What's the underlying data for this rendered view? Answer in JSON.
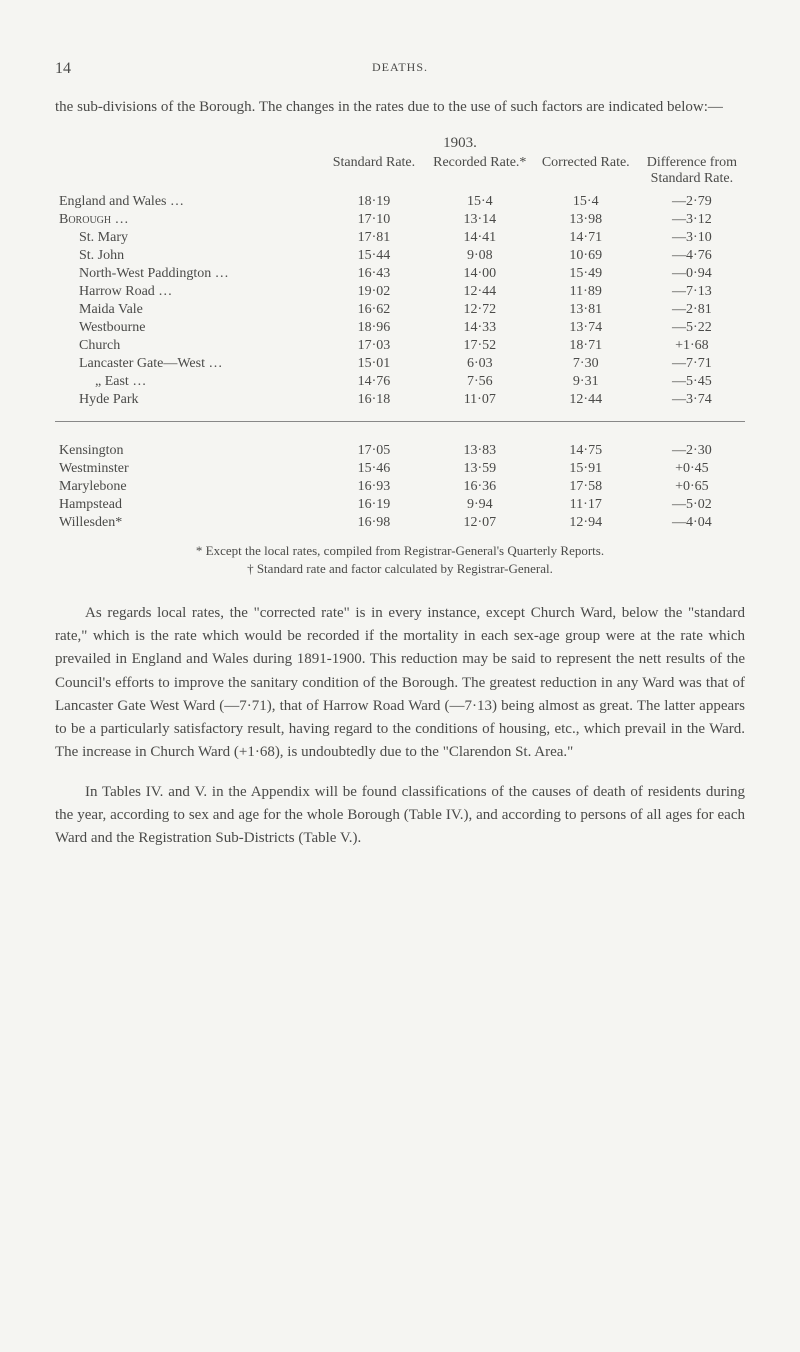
{
  "page_number": "14",
  "section_title": "DEATHS.",
  "intro": "the sub-divisions of the Borough. The changes in the rates due to the use of such factors are indicated below:—",
  "table": {
    "year": "1903.",
    "headers": {
      "col1": "Standard Rate.",
      "col2": "Recorded Rate.*",
      "col3": "Corrected Rate.",
      "col4": "Difference from Standard Rate."
    },
    "rows_top": [
      {
        "label": "England and Wales …",
        "indent": 0,
        "c1": "18·19",
        "c2": "15·4",
        "c3": "15·4",
        "c4": "—2·79"
      },
      {
        "label": "Borough …",
        "indent": 0,
        "smallcaps": true,
        "c1": "17·10",
        "c2": "13·14",
        "c3": "13·98",
        "c4": "—3·12"
      },
      {
        "label": "St. Mary",
        "indent": 1,
        "c1": "17·81",
        "c2": "14·41",
        "c3": "14·71",
        "c4": "—3·10"
      },
      {
        "label": "St. John",
        "indent": 1,
        "c1": "15·44",
        "c2": "9·08",
        "c3": "10·69",
        "c4": "—4·76"
      },
      {
        "label": "North-West Paddington …",
        "indent": 1,
        "c1": "16·43",
        "c2": "14·00",
        "c3": "15·49",
        "c4": "—0·94"
      },
      {
        "label": "Harrow Road …",
        "indent": 1,
        "c1": "19·02",
        "c2": "12·44",
        "c3": "11·89",
        "c4": "—7·13"
      },
      {
        "label": "Maida Vale",
        "indent": 1,
        "c1": "16·62",
        "c2": "12·72",
        "c3": "13·81",
        "c4": "—2·81"
      },
      {
        "label": "Westbourne",
        "indent": 1,
        "c1": "18·96",
        "c2": "14·33",
        "c3": "13·74",
        "c4": "—5·22"
      },
      {
        "label": "Church",
        "indent": 1,
        "c1": "17·03",
        "c2": "17·52",
        "c3": "18·71",
        "c4": "+1·68"
      },
      {
        "label": "Lancaster Gate—West …",
        "indent": 1,
        "c1": "15·01",
        "c2": "6·03",
        "c3": "7·30",
        "c4": "—7·71"
      },
      {
        "label": "„          East …",
        "indent": 2,
        "c1": "14·76",
        "c2": "7·56",
        "c3": "9·31",
        "c4": "—5·45"
      },
      {
        "label": "Hyde Park",
        "indent": 1,
        "c1": "16·18",
        "c2": "11·07",
        "c3": "12·44",
        "c4": "—3·74"
      }
    ],
    "rows_bottom": [
      {
        "label": "Kensington",
        "c1": "17·05",
        "c2": "13·83",
        "c3": "14·75",
        "c4": "—2·30"
      },
      {
        "label": "Westminster",
        "c1": "15·46",
        "c2": "13·59",
        "c3": "15·91",
        "c4": "+0·45"
      },
      {
        "label": "Marylebone",
        "c1": "16·93",
        "c2": "16·36",
        "c3": "17·58",
        "c4": "+0·65"
      },
      {
        "label": "Hampstead",
        "c1": "16·19",
        "c2": "9·94",
        "c3": "11·17",
        "c4": "—5·02"
      },
      {
        "label": "Willesden*",
        "c1": "16·98",
        "c2": "12·07",
        "c3": "12·94",
        "c4": "—4·04"
      }
    ]
  },
  "footnote1": "* Except the local rates, compiled from Registrar-General's Quarterly Reports.",
  "footnote2": "† Standard rate and factor calculated by Registrar-General.",
  "para1": "As regards local rates, the \"corrected rate\" is in every instance, except Church Ward, below the \"standard rate,\" which is the rate which would be recorded if the mortality in each sex-age group were at the rate which prevailed in England and Wales during 1891-1900. This reduction may be said to represent the nett results of the Council's efforts to improve the sanitary condition of the Borough. The greatest reduction in any Ward was that of Lancaster Gate West Ward (—7·71), that of Harrow Road Ward (—7·13) being almost as great. The latter appears to be a particularly satisfactory result, having regard to the conditions of housing, etc., which prevail in the Ward. The increase in Church Ward (+1·68), is undoubtedly due to the \"Clarendon St. Area.\"",
  "para2": "In Tables IV. and V. in the Appendix will be found classifications of the causes of death of residents during the year, according to sex and age for the whole Borough (Table IV.), and according to persons of all ages for each Ward and the Registration Sub-Districts (Table V.)."
}
